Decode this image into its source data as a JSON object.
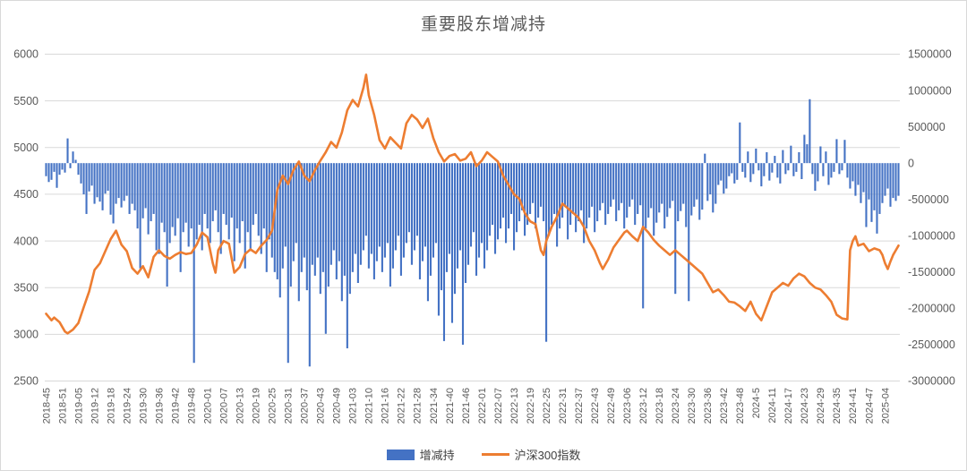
{
  "title": "重要股东增减持",
  "colors": {
    "bar": "#4472C4",
    "line": "#ED7D31",
    "grid": "#D9D9D9",
    "axis_text": "#595959",
    "title_text": "#595959",
    "legend_text": "#404040",
    "background": "#FFFFFF"
  },
  "legend": {
    "bar_label": "增减持",
    "line_label": "沪深300指数"
  },
  "chart_data": {
    "type": "combo-bar-line",
    "title": "重要股东增减持",
    "n_points": 318,
    "x_tick_interval": 6,
    "x_tick_labels": [
      "2018-45",
      "2018-51",
      "2019-05",
      "2019-12",
      "2019-18",
      "2019-24",
      "2019-30",
      "2019-36",
      "2019-42",
      "2019-48",
      "2020-01",
      "2020-07",
      "2020-13",
      "2020-19",
      "2020-25",
      "2020-31",
      "2020-37",
      "2020-43",
      "2020-49",
      "2021-03",
      "2021-10",
      "2021-16",
      "2021-22",
      "2021-28",
      "2021-34",
      "2021-40",
      "2021-46",
      "2022-01",
      "2022-07",
      "2022-13",
      "2022-19",
      "2022-25",
      "2022-31",
      "2022-37",
      "2022-43",
      "2022-49",
      "2023-06",
      "2023-12",
      "2023-18",
      "2023-24",
      "2023-30",
      "2023-36",
      "2023-42",
      "2023-48",
      "2024-5",
      "2024-11",
      "2024-17",
      "2024-23",
      "2024-29",
      "2024-35",
      "2024-41",
      "2024-47",
      "2025-04"
    ],
    "left_axis": {
      "label_for": "沪深300指数",
      "min": 2500,
      "max": 6000,
      "ticks": [
        6000,
        5500,
        5000,
        4500,
        4000,
        3500,
        3000,
        2500
      ]
    },
    "right_axis": {
      "label_for": "增减持",
      "min": -3000000,
      "max": 1500000,
      "ticks": [
        1500000,
        1000000,
        500000,
        0,
        -500000,
        -1000000,
        -1500000,
        -2000000,
        -2500000,
        -3000000
      ]
    },
    "series": [
      {
        "name": "增减持",
        "type": "bar",
        "axis": "right",
        "color": "#4472C4",
        "values": [
          -180000,
          -260000,
          -230000,
          -120000,
          -340000,
          -160000,
          -90000,
          -130000,
          340000,
          -70000,
          160000,
          45000,
          -160000,
          -280000,
          -430000,
          -700000,
          -390000,
          -310000,
          -560000,
          -470000,
          -530000,
          -650000,
          -420000,
          -380000,
          -710000,
          -830000,
          -560000,
          -480000,
          -610000,
          -520000,
          -450000,
          -700000,
          -560000,
          -650000,
          -900000,
          -1450000,
          -760000,
          -620000,
          -980000,
          -800000,
          -700000,
          -1200000,
          -1250000,
          -820000,
          -950000,
          -1700000,
          -1100000,
          -880000,
          -1000000,
          -760000,
          -1500000,
          -950000,
          -820000,
          -1150000,
          -900000,
          -2750000,
          -1050000,
          -850000,
          -1200000,
          -700000,
          -900000,
          -1100000,
          -800000,
          -650000,
          -950000,
          -1250000,
          -700000,
          -850000,
          -1050000,
          -750000,
          -1350000,
          -900000,
          -1100000,
          -800000,
          -1450000,
          -950000,
          -1200000,
          -850000,
          -700000,
          -1000000,
          -1250000,
          -900000,
          -1500000,
          -1050000,
          -1300000,
          -1500000,
          -1600000,
          -1850000,
          -1450000,
          -1150000,
          -2750000,
          -1700000,
          -1350000,
          -1100000,
          -1900000,
          -1500000,
          -1300000,
          -1750000,
          -2800000,
          -1400000,
          -1550000,
          -1300000,
          -1800000,
          -1500000,
          -2350000,
          -1700000,
          -1400000,
          -1200000,
          -1600000,
          -1350000,
          -1900000,
          -1550000,
          -2550000,
          -1800000,
          -1500000,
          -1250000,
          -1650000,
          -1400000,
          -1200000,
          -1000000,
          -1450000,
          -1250000,
          -1600000,
          -1350000,
          -1150000,
          -1500000,
          -1300000,
          -1100000,
          -1700000,
          -1450000,
          -1200000,
          -1000000,
          -1550000,
          -1300000,
          -1100000,
          -950000,
          -1400000,
          -1200000,
          -1000000,
          -1600000,
          -1350000,
          -1150000,
          -1900000,
          -1550000,
          -1300000,
          -1100000,
          -2100000,
          -1750000,
          -2450000,
          -1500000,
          -1250000,
          -2200000,
          -1800000,
          -1450000,
          -1200000,
          -2500000,
          -1650000,
          -1400000,
          -1150000,
          -950000,
          -1550000,
          -1300000,
          -1100000,
          -1450000,
          -1200000,
          -1000000,
          -850000,
          -1250000,
          -1050000,
          -900000,
          -750000,
          -1100000,
          -900000,
          -700000,
          -1200000,
          -950000,
          -800000,
          -650000,
          -1000000,
          -850000,
          -700000,
          -550000,
          -900000,
          -750000,
          -600000,
          -800000,
          -2460000,
          -1000000,
          -850000,
          -700000,
          -1150000,
          -900000,
          -750000,
          -600000,
          -1050000,
          -850000,
          -700000,
          -950000,
          -800000,
          -650000,
          -1100000,
          -900000,
          -750000,
          -600000,
          -950000,
          -800000,
          -650000,
          -550000,
          -850000,
          -700000,
          -600000,
          -500000,
          -800000,
          -650000,
          -550000,
          -900000,
          -750000,
          -600000,
          -500000,
          -850000,
          -700000,
          -580000,
          -2000000,
          -900000,
          -750000,
          -620000,
          -1000000,
          -820000,
          -680000,
          -560000,
          -900000,
          -740000,
          -620000,
          -520000,
          -1800000,
          -800000,
          -660000,
          -560000,
          -880000,
          -1900000,
          -720000,
          -600000,
          -500000,
          -780000,
          -640000,
          130000,
          -520000,
          -430000,
          -680000,
          -560000,
          -300000,
          -240000,
          -420000,
          -350000,
          -180000,
          -140000,
          -280000,
          -230000,
          560000,
          -120000,
          -200000,
          160000,
          -260000,
          -150000,
          200000,
          -100000,
          -320000,
          -180000,
          150000,
          -240000,
          -130000,
          100000,
          -200000,
          -280000,
          180000,
          -150000,
          -100000,
          240000,
          -180000,
          -120000,
          150000,
          -220000,
          390000,
          260000,
          880000,
          -150000,
          -380000,
          -250000,
          230000,
          -180000,
          160000,
          -300000,
          -200000,
          -120000,
          330000,
          -150000,
          -100000,
          320000,
          -200000,
          -350000,
          -250000,
          -450000,
          -300000,
          -550000,
          -400000,
          -880000,
          -500000,
          -810000,
          -650000,
          -970000,
          -700000,
          -550000,
          -450000,
          -350000,
          -600000,
          -480000,
          -520000,
          -450000
        ]
      },
      {
        "name": "沪深300指数",
        "type": "line",
        "axis": "left",
        "color": "#ED7D31",
        "points": [
          [
            0,
            3220
          ],
          [
            2,
            3150
          ],
          [
            3,
            3180
          ],
          [
            5,
            3130
          ],
          [
            7,
            3030
          ],
          [
            8,
            3010
          ],
          [
            10,
            3050
          ],
          [
            12,
            3120
          ],
          [
            14,
            3290
          ],
          [
            16,
            3460
          ],
          [
            18,
            3690
          ],
          [
            20,
            3760
          ],
          [
            22,
            3890
          ],
          [
            24,
            4020
          ],
          [
            26,
            4110
          ],
          [
            28,
            3960
          ],
          [
            30,
            3890
          ],
          [
            32,
            3710
          ],
          [
            34,
            3650
          ],
          [
            36,
            3730
          ],
          [
            38,
            3610
          ],
          [
            40,
            3830
          ],
          [
            42,
            3900
          ],
          [
            44,
            3840
          ],
          [
            46,
            3810
          ],
          [
            48,
            3850
          ],
          [
            50,
            3880
          ],
          [
            52,
            3860
          ],
          [
            54,
            3870
          ],
          [
            56,
            3960
          ],
          [
            58,
            4090
          ],
          [
            60,
            4040
          ],
          [
            62,
            3760
          ],
          [
            63,
            3660
          ],
          [
            64,
            3900
          ],
          [
            66,
            4000
          ],
          [
            68,
            3970
          ],
          [
            70,
            3660
          ],
          [
            72,
            3720
          ],
          [
            74,
            3860
          ],
          [
            76,
            3910
          ],
          [
            78,
            3870
          ],
          [
            80,
            3950
          ],
          [
            82,
            4010
          ],
          [
            84,
            4110
          ],
          [
            86,
            4550
          ],
          [
            88,
            4700
          ],
          [
            90,
            4610
          ],
          [
            92,
            4760
          ],
          [
            94,
            4850
          ],
          [
            96,
            4700
          ],
          [
            98,
            4640
          ],
          [
            100,
            4760
          ],
          [
            102,
            4860
          ],
          [
            104,
            4950
          ],
          [
            106,
            5060
          ],
          [
            108,
            5000
          ],
          [
            110,
            5160
          ],
          [
            112,
            5400
          ],
          [
            114,
            5510
          ],
          [
            116,
            5440
          ],
          [
            118,
            5640
          ],
          [
            119,
            5780
          ],
          [
            120,
            5560
          ],
          [
            122,
            5350
          ],
          [
            124,
            5080
          ],
          [
            126,
            4990
          ],
          [
            128,
            5110
          ],
          [
            130,
            5050
          ],
          [
            132,
            4990
          ],
          [
            134,
            5260
          ],
          [
            136,
            5350
          ],
          [
            138,
            5300
          ],
          [
            140,
            5210
          ],
          [
            142,
            5310
          ],
          [
            144,
            5100
          ],
          [
            146,
            4950
          ],
          [
            148,
            4850
          ],
          [
            150,
            4910
          ],
          [
            152,
            4930
          ],
          [
            154,
            4860
          ],
          [
            156,
            4880
          ],
          [
            158,
            4950
          ],
          [
            160,
            4800
          ],
          [
            162,
            4860
          ],
          [
            164,
            4950
          ],
          [
            166,
            4900
          ],
          [
            168,
            4850
          ],
          [
            170,
            4700
          ],
          [
            172,
            4600
          ],
          [
            174,
            4500
          ],
          [
            176,
            4450
          ],
          [
            178,
            4300
          ],
          [
            180,
            4210
          ],
          [
            182,
            4180
          ],
          [
            184,
            3900
          ],
          [
            185,
            3850
          ],
          [
            186,
            4000
          ],
          [
            188,
            4150
          ],
          [
            190,
            4260
          ],
          [
            192,
            4400
          ],
          [
            194,
            4350
          ],
          [
            196,
            4300
          ],
          [
            198,
            4250
          ],
          [
            200,
            4150
          ],
          [
            202,
            4000
          ],
          [
            204,
            3900
          ],
          [
            206,
            3760
          ],
          [
            207,
            3700
          ],
          [
            209,
            3800
          ],
          [
            211,
            3930
          ],
          [
            213,
            4010
          ],
          [
            215,
            4090
          ],
          [
            216,
            4110
          ],
          [
            218,
            4050
          ],
          [
            220,
            4000
          ],
          [
            222,
            4150
          ],
          [
            224,
            4090
          ],
          [
            226,
            4010
          ],
          [
            228,
            3950
          ],
          [
            230,
            3900
          ],
          [
            232,
            3850
          ],
          [
            234,
            3900
          ],
          [
            236,
            3850
          ],
          [
            238,
            3800
          ],
          [
            240,
            3750
          ],
          [
            242,
            3700
          ],
          [
            244,
            3650
          ],
          [
            246,
            3550
          ],
          [
            248,
            3450
          ],
          [
            250,
            3480
          ],
          [
            252,
            3420
          ],
          [
            254,
            3350
          ],
          [
            256,
            3340
          ],
          [
            258,
            3300
          ],
          [
            260,
            3250
          ],
          [
            262,
            3350
          ],
          [
            264,
            3220
          ],
          [
            266,
            3150
          ],
          [
            268,
            3300
          ],
          [
            270,
            3450
          ],
          [
            272,
            3500
          ],
          [
            274,
            3550
          ],
          [
            276,
            3520
          ],
          [
            278,
            3600
          ],
          [
            280,
            3650
          ],
          [
            282,
            3620
          ],
          [
            284,
            3550
          ],
          [
            286,
            3500
          ],
          [
            288,
            3480
          ],
          [
            290,
            3420
          ],
          [
            292,
            3350
          ],
          [
            294,
            3210
          ],
          [
            296,
            3170
          ],
          [
            298,
            3160
          ],
          [
            299,
            3900
          ],
          [
            300,
            4000
          ],
          [
            301,
            4050
          ],
          [
            302,
            3950
          ],
          [
            304,
            3970
          ],
          [
            306,
            3890
          ],
          [
            308,
            3920
          ],
          [
            310,
            3900
          ],
          [
            311,
            3850
          ],
          [
            312,
            3760
          ],
          [
            313,
            3700
          ],
          [
            314,
            3780
          ],
          [
            315,
            3850
          ],
          [
            316,
            3900
          ],
          [
            317,
            3950
          ]
        ]
      }
    ]
  }
}
